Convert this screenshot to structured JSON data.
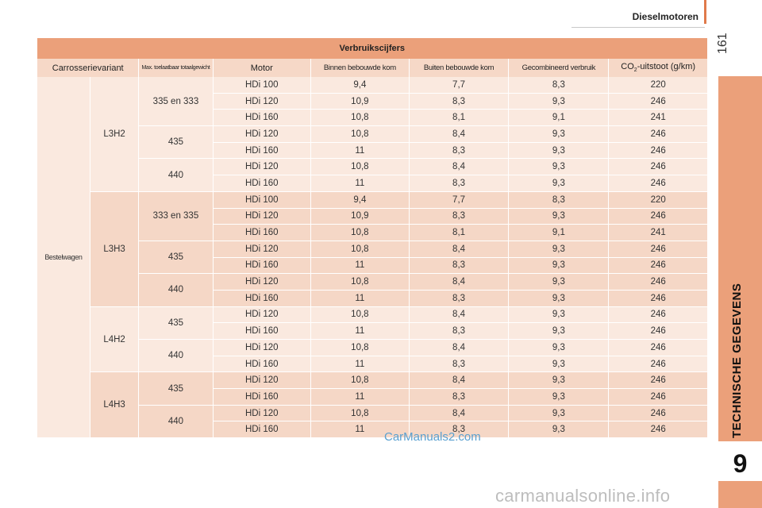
{
  "header": {
    "title": "Dieselmotoren",
    "page_number": "161"
  },
  "side_tab": {
    "label": "TECHNISCHE GEGEVENS",
    "chapter": "9"
  },
  "table": {
    "title": "Verbruikscijfers",
    "headers": {
      "body": "Carrosserievariant",
      "weight": "Max. toelaatbaar totaalgewicht",
      "engine": "Motor",
      "urban": "Binnen bebouwde kom",
      "extra_urban": "Buiten bebouwde kom",
      "combined": "Gecombineerd verbruik",
      "co2_prefix": "CO",
      "co2_sub": "2",
      "co2_suffix": "-uitstoot (g/km)"
    },
    "body_type": "Bestelwagen",
    "sections": [
      {
        "variant": "L3H2",
        "groups": [
          {
            "weight": "335 en 333",
            "rows": [
              {
                "engine": "HDi 100",
                "urban": "9,4",
                "extra": "7,7",
                "combined": "8,3",
                "co2": "220"
              },
              {
                "engine": "HDi 120",
                "urban": "10,9",
                "extra": "8,3",
                "combined": "9,3",
                "co2": "246"
              },
              {
                "engine": "HDi 160",
                "urban": "10,8",
                "extra": "8,1",
                "combined": "9,1",
                "co2": "241"
              }
            ]
          },
          {
            "weight": "435",
            "rows": [
              {
                "engine": "HDi 120",
                "urban": "10,8",
                "extra": "8,4",
                "combined": "9,3",
                "co2": "246"
              },
              {
                "engine": "HDi 160",
                "urban": "11",
                "extra": "8,3",
                "combined": "9,3",
                "co2": "246"
              }
            ]
          },
          {
            "weight": "440",
            "rows": [
              {
                "engine": "HDi 120",
                "urban": "10,8",
                "extra": "8,4",
                "combined": "9,3",
                "co2": "246"
              },
              {
                "engine": "HDi 160",
                "urban": "11",
                "extra": "8,3",
                "combined": "9,3",
                "co2": "246"
              }
            ]
          }
        ]
      },
      {
        "variant": "L3H3",
        "groups": [
          {
            "weight": "333 en 335",
            "rows": [
              {
                "engine": "HDi 100",
                "urban": "9,4",
                "extra": "7,7",
                "combined": "8,3",
                "co2": "220"
              },
              {
                "engine": "HDi 120",
                "urban": "10,9",
                "extra": "8,3",
                "combined": "9,3",
                "co2": "246"
              },
              {
                "engine": "HDi 160",
                "urban": "10,8",
                "extra": "8,1",
                "combined": "9,1",
                "co2": "241"
              }
            ]
          },
          {
            "weight": "435",
            "rows": [
              {
                "engine": "HDi 120",
                "urban": "10,8",
                "extra": "8,4",
                "combined": "9,3",
                "co2": "246"
              },
              {
                "engine": "HDi 160",
                "urban": "11",
                "extra": "8,3",
                "combined": "9,3",
                "co2": "246"
              }
            ]
          },
          {
            "weight": "440",
            "rows": [
              {
                "engine": "HDi 120",
                "urban": "10,8",
                "extra": "8,4",
                "combined": "9,3",
                "co2": "246"
              },
              {
                "engine": "HDi 160",
                "urban": "11",
                "extra": "8,3",
                "combined": "9,3",
                "co2": "246"
              }
            ]
          }
        ]
      },
      {
        "variant": "L4H2",
        "groups": [
          {
            "weight": "435",
            "rows": [
              {
                "engine": "HDi 120",
                "urban": "10,8",
                "extra": "8,4",
                "combined": "9,3",
                "co2": "246"
              },
              {
                "engine": "HDi 160",
                "urban": "11",
                "extra": "8,3",
                "combined": "9,3",
                "co2": "246"
              }
            ]
          },
          {
            "weight": "440",
            "rows": [
              {
                "engine": "HDi 120",
                "urban": "10,8",
                "extra": "8,4",
                "combined": "9,3",
                "co2": "246"
              },
              {
                "engine": "HDi 160",
                "urban": "11",
                "extra": "8,3",
                "combined": "9,3",
                "co2": "246"
              }
            ]
          }
        ]
      },
      {
        "variant": "L4H3",
        "groups": [
          {
            "weight": "435",
            "rows": [
              {
                "engine": "HDi 120",
                "urban": "10,8",
                "extra": "8,4",
                "combined": "9,3",
                "co2": "246"
              },
              {
                "engine": "HDi 160",
                "urban": "11",
                "extra": "8,3",
                "combined": "9,3",
                "co2": "246"
              }
            ]
          },
          {
            "weight": "440",
            "rows": [
              {
                "engine": "HDi 120",
                "urban": "10,8",
                "extra": "8,4",
                "combined": "9,3",
                "co2": "246"
              },
              {
                "engine": "HDi 160",
                "urban": "11",
                "extra": "8,3",
                "combined": "9,3",
                "co2": "246"
              }
            ]
          }
        ]
      }
    ]
  },
  "watermarks": {
    "center": "CarManuals2.com",
    "footer": "carmanualsonline.info"
  },
  "colors": {
    "accent": "#eba07a",
    "header_bg": "#f6d8c7",
    "row_light": "#fae9df",
    "row_dark": "#f5d7c6"
  }
}
